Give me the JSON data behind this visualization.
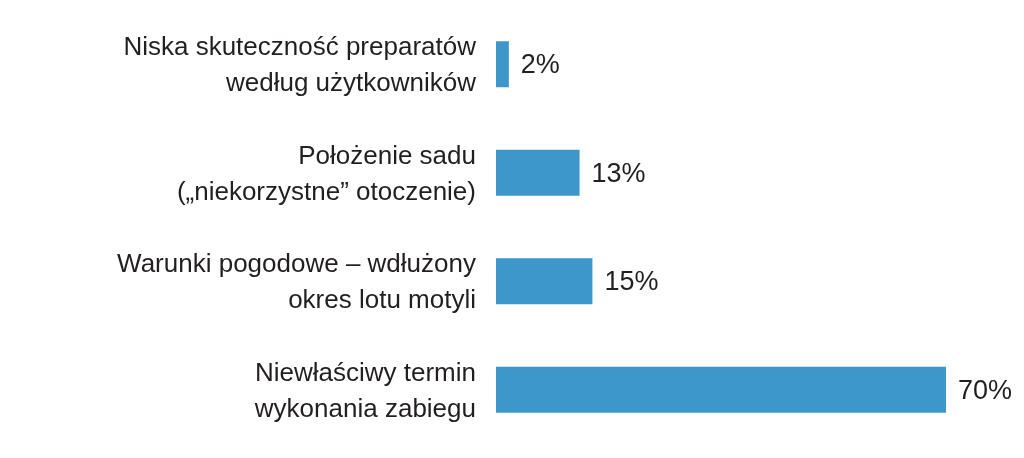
{
  "chart_data": {
    "type": "bar",
    "orientation": "horizontal",
    "categories": [
      "Niska skuteczność preparatów według użytkowników",
      "Położenie sadu („niekorzystne” otoczenie)",
      "Warunki pogodowe – wdłużony okres lotu motyli",
      "Niewłaściwy termin wykonania zabiegu"
    ],
    "values": [
      2,
      13,
      15,
      70
    ],
    "value_labels": [
      "2%",
      "13%",
      "15%",
      "70%"
    ],
    "color": "#3d98c9"
  }
}
